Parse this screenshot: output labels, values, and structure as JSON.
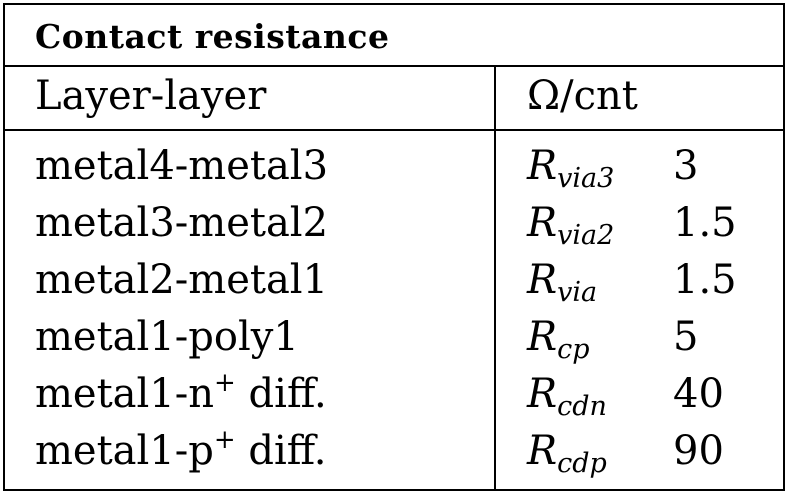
{
  "table": {
    "title": "Contact resistance",
    "header": {
      "layer": "Layer-layer",
      "unit": "Ω/cnt"
    },
    "rows": [
      {
        "layer_base": "metal4-metal3",
        "layer_sup": "",
        "layer_tail": "",
        "sym_base": "R",
        "sym_sub": "via3",
        "value": "3"
      },
      {
        "layer_base": "metal3-metal2",
        "layer_sup": "",
        "layer_tail": "",
        "sym_base": "R",
        "sym_sub": "via2",
        "value": "1.5"
      },
      {
        "layer_base": "metal2-metal1",
        "layer_sup": "",
        "layer_tail": "",
        "sym_base": "R",
        "sym_sub": "via",
        "value": "1.5"
      },
      {
        "layer_base": "metal1-poly1",
        "layer_sup": "",
        "layer_tail": "",
        "sym_base": "R",
        "sym_sub": "cp",
        "value": "5"
      },
      {
        "layer_base": "metal1-n",
        "layer_sup": "+",
        "layer_tail": " diff.",
        "sym_base": "R",
        "sym_sub": "cdn",
        "value": "40"
      },
      {
        "layer_base": "metal1-p",
        "layer_sup": "+",
        "layer_tail": " diff.",
        "sym_base": "R",
        "sym_sub": "cdp",
        "value": "90"
      }
    ]
  }
}
